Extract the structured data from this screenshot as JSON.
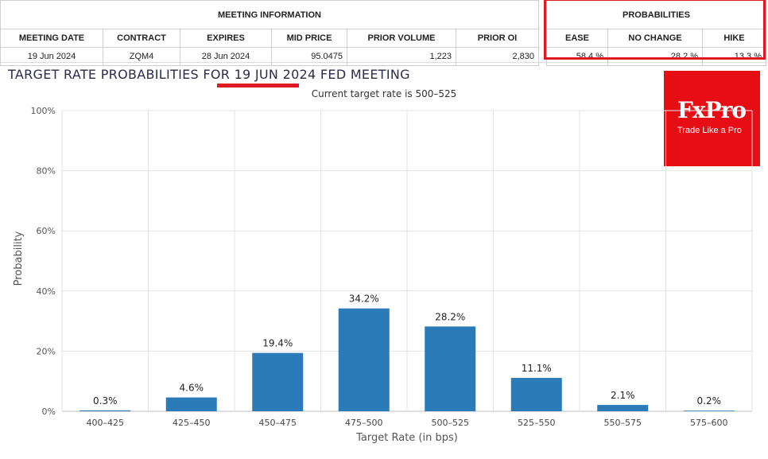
{
  "meeting_info": {
    "title": "MEETING INFORMATION",
    "columns": [
      "MEETING DATE",
      "CONTRACT",
      "EXPIRES",
      "MID PRICE",
      "PRIOR VOLUME",
      "PRIOR OI"
    ],
    "row": [
      "19 Jun 2024",
      "ZQM4",
      "28 Jun 2024",
      "95.0475",
      "1,223",
      "2,830"
    ]
  },
  "probabilities": {
    "title": "PROBABILITIES",
    "columns": [
      "EASE",
      "NO CHANGE",
      "HIKE"
    ],
    "row": [
      "58.4 %",
      "28.2 %",
      "13.3 %"
    ],
    "highlight_color": "#e01a22"
  },
  "logo": {
    "wordmark": "FxPro",
    "tagline": "Trade Like a Pro",
    "color": "#e60e14"
  },
  "chart_data": {
    "type": "bar",
    "title_prefix": "TARGET RATE PROBABILITIES FOR ",
    "title_date": "19 JUN 2024",
    "title_suffix": " FED MEETING",
    "subtitle": "Current target rate is 500–525",
    "xlabel": "Target Rate (in bps)",
    "ylabel": "Probability",
    "categories": [
      "400–425",
      "425–450",
      "450–475",
      "475–500",
      "500–525",
      "525–550",
      "550–575",
      "575–600"
    ],
    "values": [
      0.3,
      4.6,
      19.4,
      34.2,
      28.2,
      11.1,
      2.1,
      0.2
    ],
    "data_labels": [
      "0.3%",
      "4.6%",
      "19.4%",
      "34.2%",
      "28.2%",
      "11.1%",
      "2.1%",
      "0.2%"
    ],
    "ylim": [
      0,
      100
    ],
    "yticks": [
      0,
      20,
      40,
      60,
      80,
      100
    ],
    "ytick_labels": [
      "0%",
      "20%",
      "40%",
      "60%",
      "80%",
      "100%"
    ],
    "grid": true,
    "bar_color": "#2b7bb9"
  }
}
